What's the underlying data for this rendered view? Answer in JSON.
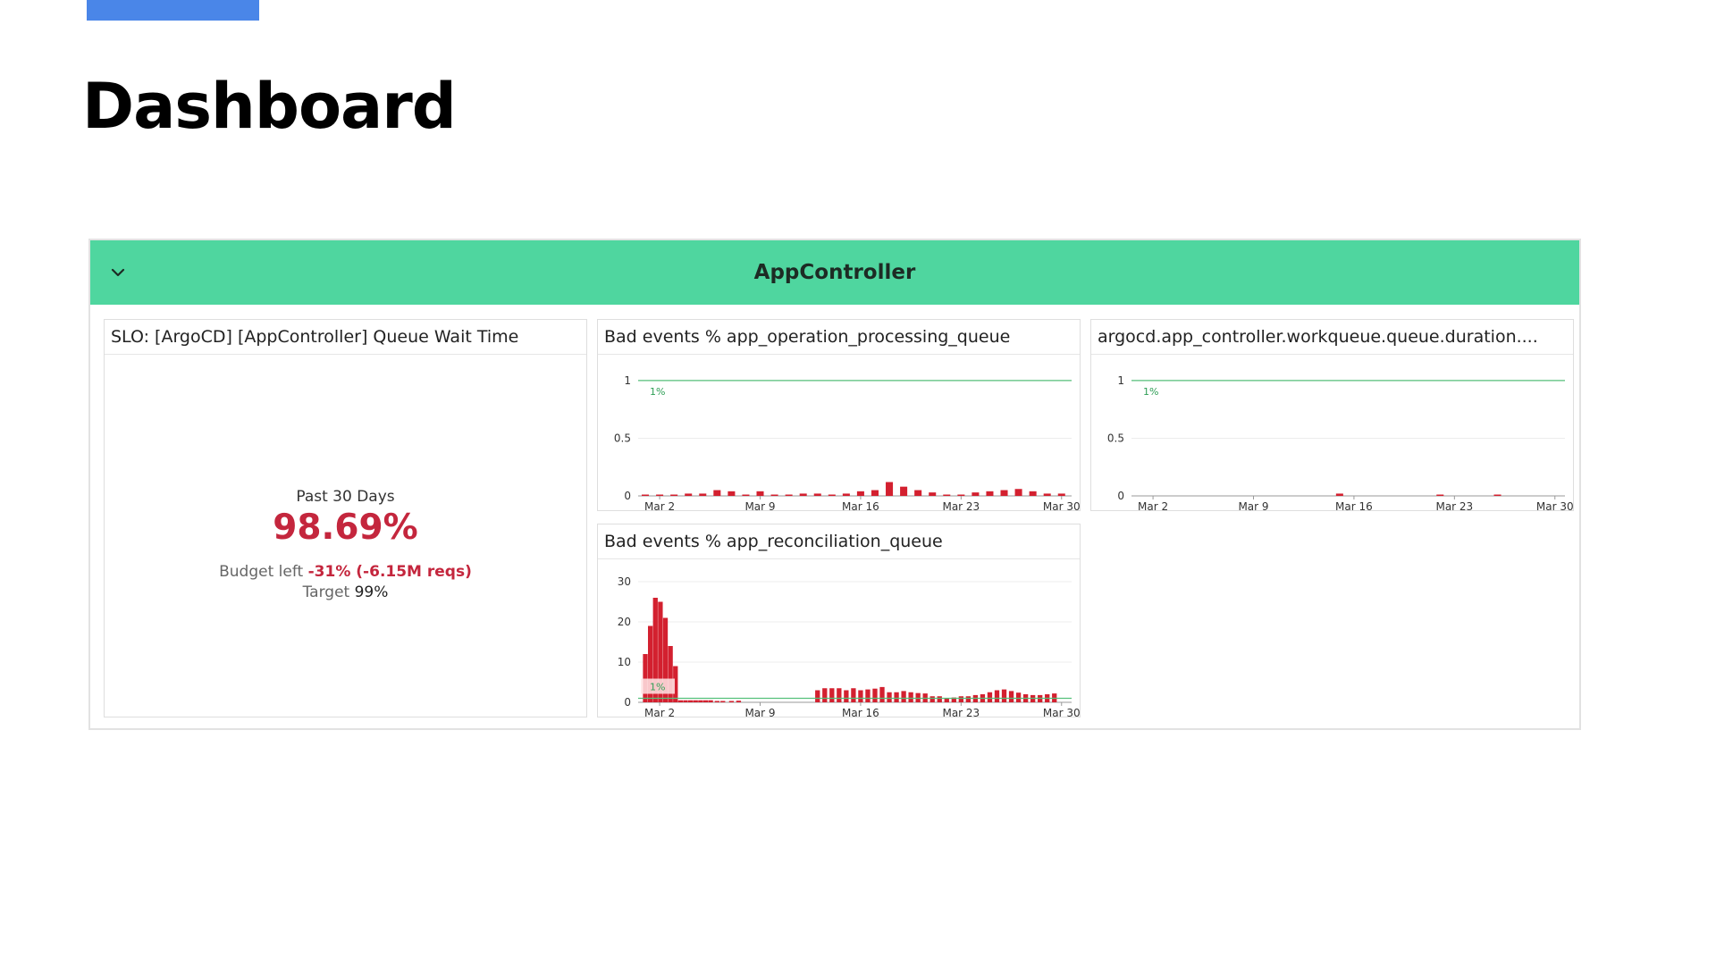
{
  "page": {
    "title": "Dashboard"
  },
  "group": {
    "title": "AppController"
  },
  "slo": {
    "title": "SLO: [ArgoCD] [AppController] Queue Wait Time",
    "period": "Past 30 Days",
    "value": "98.69%",
    "budget_label": "Budget left",
    "budget_value": "-31% (-6.15M reqs)",
    "target_label": "Target",
    "target_value": "99%"
  },
  "colors": {
    "accent": "#4a86e8",
    "header": "#4fd69f",
    "bar": "#d3202f",
    "threshold": "#54c07a",
    "slo_value": "#c4263d"
  },
  "chart_data": [
    {
      "type": "bar",
      "title": "Bad events % app_operation_processing_queue",
      "x_ticks": [
        "Mar 2",
        "Mar 9",
        "Mar 16",
        "Mar 23",
        "Mar 30"
      ],
      "y_ticks": [
        0,
        0.5,
        1
      ],
      "ylim": [
        0,
        1.1
      ],
      "threshold": {
        "value": 1,
        "label": "1%"
      },
      "days": [
        1,
        2,
        3,
        4,
        5,
        6,
        7,
        8,
        9,
        10,
        11,
        12,
        13,
        14,
        15,
        16,
        17,
        18,
        19,
        20,
        21,
        22,
        23,
        24,
        25,
        26,
        27,
        28,
        29,
        30
      ],
      "values": [
        0.01,
        0.01,
        0,
        0.02,
        0.02,
        0.05,
        0.04,
        0.01,
        0.04,
        0,
        0,
        0.02,
        0.02,
        0.01,
        0.02,
        0.04,
        0.05,
        0.12,
        0.08,
        0.05,
        0.03,
        0.01,
        0.01,
        0.03,
        0.04,
        0.05,
        0.06,
        0.04,
        0.02,
        0.02
      ]
    },
    {
      "type": "bar",
      "title": "argocd.app_controller.workqueue.queue.duration....",
      "x_ticks": [
        "Mar 2",
        "Mar 9",
        "Mar 16",
        "Mar 23",
        "Mar 30"
      ],
      "y_ticks": [
        0,
        0.5,
        1
      ],
      "ylim": [
        0,
        1.1
      ],
      "threshold": {
        "value": 1,
        "label": "1%"
      },
      "days": [
        15,
        22,
        26
      ],
      "values": [
        0.02,
        0.01,
        0.005
      ]
    },
    {
      "type": "bar",
      "title": "Bad events % app_reconciliation_queue",
      "x_ticks": [
        "Mar 2",
        "Mar 9",
        "Mar 16",
        "Mar 23",
        "Mar 30"
      ],
      "y_ticks": [
        0,
        10,
        20,
        30
      ],
      "ylim": [
        0,
        32
      ],
      "threshold": {
        "value": 1,
        "label": "1%"
      },
      "days": [
        1.0,
        1.35,
        1.7,
        2.05,
        2.4,
        2.75,
        3.1,
        3.45,
        3.8,
        4.15,
        4.5,
        4.85,
        5.2,
        5.55,
        6.0,
        6.4,
        7.0,
        7.5,
        13.0,
        13.5,
        14.0,
        14.5,
        15.0,
        15.5,
        16.0,
        16.5,
        17.0,
        17.5,
        18.0,
        18.5,
        19.0,
        19.5,
        20.0,
        20.5,
        21.0,
        21.5,
        22.0,
        22.5,
        23.0,
        23.5,
        24.0,
        24.5,
        25.0,
        25.5,
        26.0,
        26.5,
        27.0,
        27.5,
        28.0,
        28.5,
        29.0,
        29.5
      ],
      "values": [
        12,
        19,
        26,
        25,
        21,
        14,
        9,
        0.5,
        0.5,
        0.5,
        0.5,
        0.5,
        0.5,
        0.5,
        0.3,
        0.3,
        0.3,
        0.4,
        3,
        3.5,
        3.5,
        3.5,
        3,
        3.5,
        3,
        3.2,
        3.4,
        3.8,
        2.5,
        2.5,
        2.8,
        2.5,
        2.3,
        2.2,
        1.5,
        1.5,
        1.0,
        1.2,
        1.5,
        1.5,
        1.8,
        2.0,
        2.5,
        3.0,
        3.2,
        2.8,
        2.4,
        2.0,
        1.8,
        1.8,
        2.0,
        2.2
      ]
    }
  ]
}
